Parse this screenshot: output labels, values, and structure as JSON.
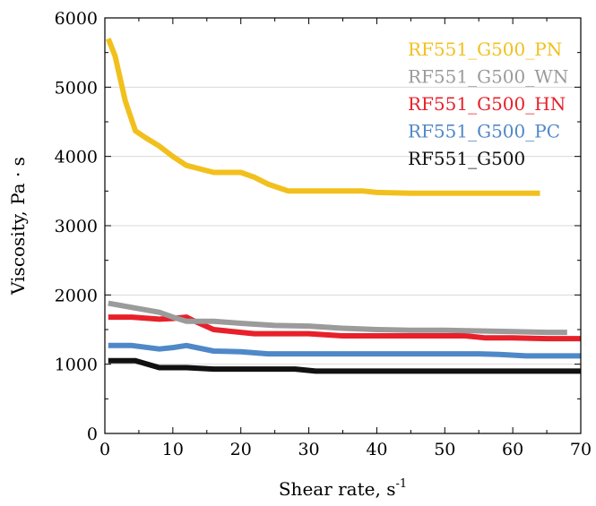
{
  "chart_data": {
    "type": "line",
    "xlabel": "Shear rate, s",
    "xlabel_sup": "-1",
    "ylabel": "Viscosity, Pa · s",
    "xlim": [
      0,
      70
    ],
    "ylim": [
      0,
      6000
    ],
    "xticks": [
      0,
      10,
      20,
      30,
      40,
      50,
      60,
      70
    ],
    "yticks": [
      0,
      1000,
      2000,
      3000,
      4000,
      5000,
      6000
    ],
    "grid": true,
    "legend_position": "top-right",
    "series": [
      {
        "name": "RF551_G500_PN",
        "color": "#F2C01D",
        "x": [
          0.5,
          1.5,
          3,
          4.5,
          6,
          8,
          10,
          12,
          14,
          16,
          18,
          20,
          22,
          24,
          27,
          30,
          35,
          38,
          40,
          45,
          50,
          55,
          60,
          64
        ],
        "y": [
          5700,
          5450,
          4800,
          4370,
          4270,
          4150,
          4000,
          3870,
          3820,
          3770,
          3770,
          3770,
          3700,
          3600,
          3500,
          3500,
          3500,
          3500,
          3480,
          3470,
          3470,
          3470,
          3470,
          3470
        ]
      },
      {
        "name": "RF551_G500_WN",
        "color": "#9B9B9B",
        "x": [
          0.5,
          4,
          8,
          10,
          12,
          16,
          20,
          25,
          30,
          35,
          40,
          45,
          50,
          55,
          60,
          65,
          68
        ],
        "y": [
          1880,
          1820,
          1750,
          1680,
          1620,
          1620,
          1590,
          1560,
          1550,
          1520,
          1500,
          1490,
          1490,
          1480,
          1470,
          1460,
          1460
        ]
      },
      {
        "name": "RF551_G500_HN",
        "color": "#E8202A",
        "x": [
          0.5,
          4,
          8,
          10,
          12,
          13,
          16,
          20,
          22,
          25,
          30,
          35,
          40,
          45,
          50,
          53,
          56,
          60,
          65,
          70
        ],
        "y": [
          1680,
          1680,
          1650,
          1660,
          1680,
          1630,
          1500,
          1460,
          1440,
          1440,
          1440,
          1410,
          1410,
          1410,
          1410,
          1410,
          1380,
          1380,
          1370,
          1370
        ]
      },
      {
        "name": "RF551_G500_PC",
        "color": "#4F88C8",
        "x": [
          0.5,
          4,
          8,
          10,
          12,
          16,
          20,
          24,
          30,
          35,
          40,
          45,
          50,
          55,
          58,
          62,
          65,
          70
        ],
        "y": [
          1270,
          1270,
          1220,
          1240,
          1270,
          1190,
          1180,
          1150,
          1150,
          1150,
          1150,
          1150,
          1150,
          1150,
          1140,
          1120,
          1120,
          1120
        ]
      },
      {
        "name": "RF551_G500",
        "color": "#111111",
        "x": [
          0.5,
          4.5,
          8,
          12,
          16,
          20,
          24,
          28,
          31,
          35,
          40,
          45,
          50,
          55,
          60,
          65,
          70
        ],
        "y": [
          1050,
          1050,
          950,
          950,
          930,
          930,
          930,
          930,
          900,
          900,
          900,
          900,
          900,
          900,
          900,
          900,
          900
        ]
      }
    ]
  }
}
